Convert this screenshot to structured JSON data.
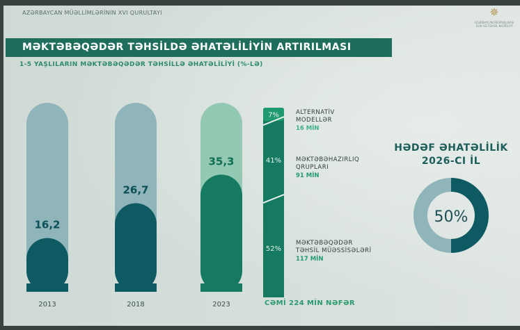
{
  "header": {
    "conference": "AZƏRBAYCAN MÜƏLLİMLƏRİNİN XVI QURULTAYI",
    "emblem_icon": "state-emblem-icon",
    "emblem_caption": "AZƏRBAYCAN RESPUBLİKASI ELM VƏ TƏHSİL NAZİRLİYİ"
  },
  "title": "MƏKTƏBƏQƏDƏR TƏHSİLDƏ ƏHATƏLİLİYİN ARTIRILMASI",
  "subtitle": "1-5 YAŞLILARIN MƏKTƏBƏQƏDƏR TƏHSİLLƏ ƏHATƏLİLİYİ (%-LƏ)",
  "colors": {
    "accent": "#1f6e5c",
    "dark_teal": "#0e5a62",
    "mid_green": "#157a60",
    "bright_green": "#1f9a70",
    "light_track": "#8fb4b9",
    "light_green_track": "#93c8b3",
    "value_text_dark": "#0b4f59",
    "value_text_green": "#0d6e52"
  },
  "chart_data": [
    {
      "type": "bar",
      "categories": [
        "2013",
        "2018",
        "2023"
      ],
      "values": [
        16.2,
        26.7,
        35.3
      ],
      "value_labels": [
        "16,2",
        "26,7",
        "35,3"
      ],
      "ylim": [
        0,
        100
      ]
    },
    {
      "type": "bar",
      "stacked": true,
      "segments": [
        {
          "share": 7,
          "share_label": "7%",
          "name_lines": [
            "ALTERNATİV",
            "MODELLƏR"
          ],
          "count": "16 MİN"
        },
        {
          "share": 41,
          "share_label": "41%",
          "name_lines": [
            "MƏKTƏBƏHAZIRLIQ",
            "QRUPLARI"
          ],
          "count": "91 MİN"
        },
        {
          "share": 52,
          "share_label": "52%",
          "name_lines": [
            "MƏKTƏBƏQƏDƏR",
            "TƏHSİL MÜƏSSİSƏLƏRİ"
          ],
          "count": "117 MİN"
        }
      ],
      "total_label": "CƏMİ 224 MİN NƏFƏR"
    },
    {
      "type": "pie",
      "title_lines": [
        "HƏDƏF ƏHATƏLİLİK",
        "2026-CI İL"
      ],
      "value": 50,
      "value_label": "50%"
    }
  ]
}
